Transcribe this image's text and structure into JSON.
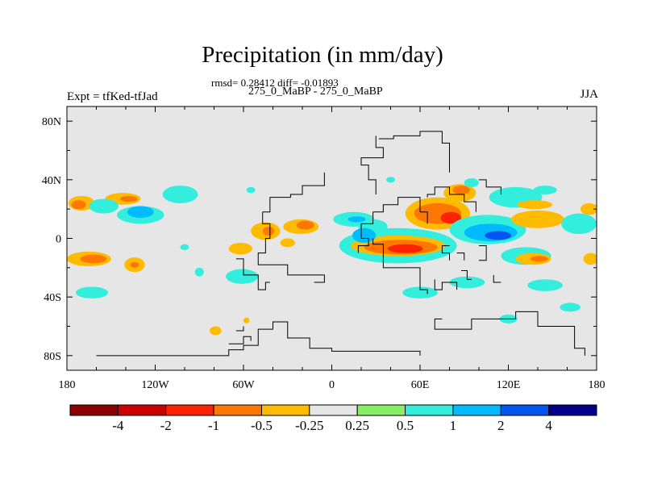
{
  "chart_data": {
    "type": "heatmap",
    "title": "Precipitation (in mm/day)",
    "stats_line": "rmsd= 0.28412 diff= -0.01893",
    "subtitle": "275_0_MaBP - 275_0_MaBP",
    "left_label": "Expt = tfKed-tfJad",
    "right_label": "JJA",
    "x_ticks": [
      "180",
      "120W",
      "60W",
      "0",
      "60E",
      "120E",
      "180"
    ],
    "y_ticks": [
      "80N",
      "40N",
      "0",
      "40S",
      "80S"
    ],
    "xlim": [
      -180,
      180
    ],
    "ylim": [
      -90,
      90
    ],
    "colorbar": {
      "labels": [
        "-4",
        "-2",
        "-1",
        "-0.5",
        "-0.25",
        "0.25",
        "0.5",
        "1",
        "2",
        "4"
      ],
      "colors": [
        "#8b0000",
        "#cc0000",
        "#ff2200",
        "#ff7700",
        "#ffbb00",
        "#e6e6e6",
        "#88ee66",
        "#33eedd",
        "#00bbff",
        "#0055ee",
        "#000088"
      ]
    },
    "background_color": "#e6e6e6",
    "blobs": [
      {
        "lon": -170,
        "lat": 24,
        "rx": 9,
        "ry": 5,
        "level": -0.5
      },
      {
        "lon": -172,
        "lat": 23,
        "rx": 5,
        "ry": 3,
        "level": -1
      },
      {
        "lon": -142,
        "lat": 27,
        "rx": 12,
        "ry": 4,
        "level": -0.5
      },
      {
        "lon": -138,
        "lat": 27,
        "rx": 6,
        "ry": 2,
        "level": -1
      },
      {
        "lon": -155,
        "lat": 22,
        "rx": 10,
        "ry": 5,
        "level": 0.5
      },
      {
        "lon": -130,
        "lat": 16,
        "rx": 16,
        "ry": 6,
        "level": 0.5
      },
      {
        "lon": -130,
        "lat": 18,
        "rx": 9,
        "ry": 4,
        "level": 1
      },
      {
        "lon": -103,
        "lat": 30,
        "rx": 12,
        "ry": 6,
        "level": 0.5
      },
      {
        "lon": -165,
        "lat": -14,
        "rx": 15,
        "ry": 5,
        "level": -0.5
      },
      {
        "lon": -162,
        "lat": -14,
        "rx": 9,
        "ry": 3,
        "level": -1
      },
      {
        "lon": -134,
        "lat": -18,
        "rx": 7,
        "ry": 5,
        "level": -0.5
      },
      {
        "lon": -134,
        "lat": -18,
        "rx": 3,
        "ry": 2,
        "level": -1
      },
      {
        "lon": -163,
        "lat": -37,
        "rx": 11,
        "ry": 4,
        "level": 0.5
      },
      {
        "lon": -90,
        "lat": -23,
        "rx": 3,
        "ry": 3,
        "level": 0.5
      },
      {
        "lon": -61,
        "lat": -26,
        "rx": 11,
        "ry": 5,
        "level": 0.5
      },
      {
        "lon": -62,
        "lat": -7,
        "rx": 8,
        "ry": 4,
        "level": -0.5
      },
      {
        "lon": -45,
        "lat": 5,
        "rx": 10,
        "ry": 6,
        "level": -0.5
      },
      {
        "lon": -43,
        "lat": 5,
        "rx": 4,
        "ry": 3,
        "level": -1
      },
      {
        "lon": -21,
        "lat": 8,
        "rx": 12,
        "ry": 5,
        "level": -0.5
      },
      {
        "lon": -18,
        "lat": 9,
        "rx": 6,
        "ry": 3,
        "level": -1
      },
      {
        "lon": -30,
        "lat": -3,
        "rx": 5,
        "ry": 3,
        "level": -0.5
      },
      {
        "lon": -79,
        "lat": -63,
        "rx": 4,
        "ry": 3,
        "level": -0.5
      },
      {
        "lon": -58,
        "lat": -56,
        "rx": 2,
        "ry": 2,
        "level": -0.5
      },
      {
        "lon": 15,
        "lat": 13,
        "rx": 14,
        "ry": 5,
        "level": 0.5
      },
      {
        "lon": 17,
        "lat": 13,
        "rx": 6,
        "ry": 2,
        "level": 1
      },
      {
        "lon": 28,
        "lat": 8,
        "rx": 10,
        "ry": 5,
        "level": 0.5
      },
      {
        "lon": 45,
        "lat": -5,
        "rx": 40,
        "ry": 12,
        "level": 0.5
      },
      {
        "lon": 45,
        "lat": -5,
        "rx": 32,
        "ry": 7,
        "level": -0.5
      },
      {
        "lon": 47,
        "lat": -6,
        "rx": 25,
        "ry": 5,
        "level": -1
      },
      {
        "lon": 50,
        "lat": -7,
        "rx": 12,
        "ry": 3,
        "level": -2
      },
      {
        "lon": 22,
        "lat": 2,
        "rx": 8,
        "ry": 5,
        "level": 1
      },
      {
        "lon": 72,
        "lat": 17,
        "rx": 22,
        "ry": 11,
        "level": -0.5
      },
      {
        "lon": 72,
        "lat": 17,
        "rx": 16,
        "ry": 7,
        "level": -1
      },
      {
        "lon": 81,
        "lat": 14,
        "rx": 7,
        "ry": 4,
        "level": -2
      },
      {
        "lon": 87,
        "lat": 31,
        "rx": 11,
        "ry": 6,
        "level": -0.5
      },
      {
        "lon": 88,
        "lat": 33,
        "rx": 6,
        "ry": 3,
        "level": -1
      },
      {
        "lon": 106,
        "lat": 6,
        "rx": 26,
        "ry": 10,
        "level": 0.5
      },
      {
        "lon": 108,
        "lat": 4,
        "rx": 18,
        "ry": 6,
        "level": 1
      },
      {
        "lon": 113,
        "lat": 2,
        "rx": 9,
        "ry": 3,
        "level": 2
      },
      {
        "lon": 125,
        "lat": 28,
        "rx": 18,
        "ry": 7,
        "level": 0.5
      },
      {
        "lon": 138,
        "lat": 23,
        "rx": 12,
        "ry": 3,
        "level": -0.5
      },
      {
        "lon": 140,
        "lat": 13,
        "rx": 18,
        "ry": 6,
        "level": -0.5
      },
      {
        "lon": 132,
        "lat": -12,
        "rx": 17,
        "ry": 6,
        "level": 0.5
      },
      {
        "lon": 137,
        "lat": -14,
        "rx": 12,
        "ry": 4,
        "level": -0.5
      },
      {
        "lon": 141,
        "lat": -14,
        "rx": 6,
        "ry": 2,
        "level": -1
      },
      {
        "lon": 168,
        "lat": 10,
        "rx": 12,
        "ry": 7,
        "level": 0.5
      },
      {
        "lon": 176,
        "lat": -14,
        "rx": 5,
        "ry": 4,
        "level": -0.5
      },
      {
        "lon": 175,
        "lat": 20,
        "rx": 6,
        "ry": 4,
        "level": -0.5
      },
      {
        "lon": 60,
        "lat": -37,
        "rx": 12,
        "ry": 4,
        "level": 0.5
      },
      {
        "lon": 92,
        "lat": -30,
        "rx": 12,
        "ry": 4,
        "level": 0.5
      },
      {
        "lon": 145,
        "lat": -32,
        "rx": 12,
        "ry": 4,
        "level": 0.5
      },
      {
        "lon": 162,
        "lat": -47,
        "rx": 7,
        "ry": 3,
        "level": 0.5
      },
      {
        "lon": 145,
        "lat": 33,
        "rx": 8,
        "ry": 3,
        "level": 0.5
      },
      {
        "lon": 120,
        "lat": -55,
        "rx": 6,
        "ry": 3,
        "level": 0.5
      },
      {
        "lon": 40,
        "lat": 40,
        "rx": 3,
        "ry": 2,
        "level": 0.5
      },
      {
        "lon": 95,
        "lat": 38,
        "rx": 5,
        "ry": 3,
        "level": 0.5
      },
      {
        "lon": -100,
        "lat": -6,
        "rx": 3,
        "ry": 2,
        "level": 0.5
      },
      {
        "lon": -55,
        "lat": 33,
        "rx": 3,
        "ry": 2,
        "level": 0.5
      }
    ],
    "coastlines": [
      [
        [
          -160,
          -80
        ],
        [
          -70,
          -80
        ],
        [
          -70,
          -76
        ],
        [
          -60,
          -76
        ],
        [
          -60,
          -73
        ],
        [
          -50,
          -73
        ],
        [
          -50,
          -62
        ],
        [
          -40,
          -62
        ],
        [
          -40,
          -57
        ],
        [
          -30,
          -57
        ],
        [
          -30,
          -68
        ],
        [
          -15,
          -68
        ],
        [
          -15,
          -75
        ],
        [
          0,
          -75
        ],
        [
          0,
          -77
        ],
        [
          60,
          -77
        ],
        [
          60,
          -80
        ]
      ],
      [
        [
          -70,
          -72
        ],
        [
          -60,
          -72
        ],
        [
          -60,
          -67
        ],
        [
          -55,
          -67
        ],
        [
          -55,
          -70
        ]
      ],
      [
        [
          -65,
          -63
        ],
        [
          -60,
          -63
        ],
        [
          -60,
          -60
        ]
      ],
      [
        [
          -47,
          18
        ],
        [
          -47,
          10
        ],
        [
          -42,
          10
        ],
        [
          -42,
          0
        ],
        [
          -45,
          0
        ],
        [
          -45,
          -10
        ],
        [
          -50,
          -10
        ],
        [
          -50,
          -18
        ],
        [
          -30,
          -18
        ],
        [
          -30,
          -25
        ],
        [
          -5,
          -25
        ],
        [
          -5,
          -30
        ],
        [
          -12,
          -30
        ]
      ],
      [
        [
          -47,
          18
        ],
        [
          -42,
          18
        ],
        [
          -42,
          28
        ],
        [
          -28,
          28
        ],
        [
          -28,
          30
        ],
        [
          -20,
          30
        ],
        [
          -20,
          36
        ],
        [
          -5,
          36
        ],
        [
          -5,
          45
        ]
      ],
      [
        [
          -65,
          -14
        ],
        [
          -60,
          -14
        ],
        [
          -60,
          -25
        ],
        [
          -50,
          -25
        ],
        [
          -50,
          -35
        ],
        [
          -45,
          -35
        ],
        [
          -45,
          -30
        ],
        [
          -42,
          -30
        ]
      ],
      [
        [
          30,
          70
        ],
        [
          30,
          62
        ],
        [
          35,
          62
        ],
        [
          35,
          55
        ],
        [
          20,
          55
        ],
        [
          20,
          50
        ],
        [
          25,
          50
        ],
        [
          25,
          40
        ],
        [
          30,
          40
        ],
        [
          30,
          30
        ]
      ],
      [
        [
          32,
          68
        ],
        [
          42,
          68
        ],
        [
          42,
          70
        ],
        [
          60,
          70
        ],
        [
          60,
          73
        ],
        [
          75,
          73
        ],
        [
          75,
          65
        ],
        [
          80,
          65
        ],
        [
          80,
          45
        ]
      ],
      [
        [
          28,
          18
        ],
        [
          28,
          10
        ],
        [
          20,
          10
        ],
        [
          20,
          0
        ],
        [
          25,
          0
        ],
        [
          25,
          -5
        ],
        [
          18,
          -5
        ],
        [
          18,
          -10
        ]
      ],
      [
        [
          28,
          18
        ],
        [
          35,
          18
        ],
        [
          35,
          23
        ],
        [
          45,
          23
        ],
        [
          45,
          28
        ],
        [
          60,
          28
        ],
        [
          60,
          18
        ]
      ],
      [
        [
          28,
          0
        ],
        [
          28,
          -4
        ],
        [
          35,
          -4
        ],
        [
          35,
          -20
        ],
        [
          60,
          -20
        ],
        [
          60,
          -35
        ],
        [
          65,
          -35
        ],
        [
          65,
          -38
        ]
      ],
      [
        [
          60,
          18
        ],
        [
          65,
          18
        ],
        [
          65,
          10
        ]
      ],
      [
        [
          65,
          28
        ],
        [
          65,
          30
        ],
        [
          70,
          30
        ],
        [
          70,
          35
        ],
        [
          80,
          35
        ],
        [
          80,
          30
        ],
        [
          90,
          30
        ],
        [
          90,
          25
        ],
        [
          98,
          25
        ],
        [
          98,
          18
        ]
      ],
      [
        [
          70,
          -28
        ],
        [
          70,
          -35
        ],
        [
          75,
          -35
        ],
        [
          75,
          -30
        ],
        [
          85,
          -30
        ],
        [
          85,
          -35
        ]
      ],
      [
        [
          80,
          -5
        ],
        [
          75,
          -5
        ],
        [
          75,
          -10
        ],
        [
          80,
          -10
        ],
        [
          80,
          -15
        ]
      ],
      [
        [
          85,
          -10
        ],
        [
          90,
          -10
        ],
        [
          90,
          -15
        ]
      ],
      [
        [
          88,
          -22
        ],
        [
          92,
          -22
        ],
        [
          92,
          -28
        ],
        [
          95,
          -28
        ]
      ],
      [
        [
          100,
          -5
        ],
        [
          105,
          -5
        ],
        [
          105,
          -15
        ],
        [
          100,
          -15
        ]
      ],
      [
        [
          110,
          -25
        ],
        [
          110,
          -30
        ],
        [
          115,
          -30
        ]
      ],
      [
        [
          100,
          40
        ],
        [
          105,
          40
        ],
        [
          105,
          35
        ],
        [
          115,
          35
        ],
        [
          115,
          30
        ]
      ],
      [
        [
          75,
          -55
        ],
        [
          70,
          -55
        ],
        [
          70,
          -62
        ],
        [
          95,
          -62
        ],
        [
          95,
          -55
        ],
        [
          125,
          -55
        ],
        [
          125,
          -50
        ],
        [
          140,
          -50
        ],
        [
          140,
          -60
        ],
        [
          165,
          -60
        ],
        [
          165,
          -75
        ],
        [
          172,
          -75
        ],
        [
          172,
          -80
        ]
      ]
    ]
  }
}
